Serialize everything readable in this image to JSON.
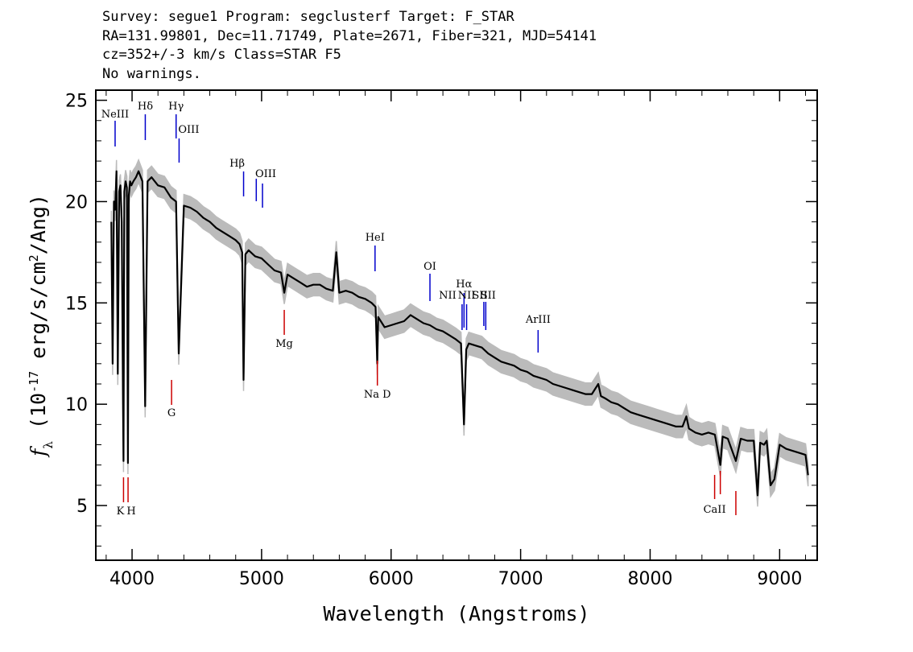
{
  "header": {
    "line1": "Survey: segue1 Program: segclusterf Target: F_STAR",
    "line2": "RA=131.99801, Dec=11.71749, Plate=2671, Fiber=321, MJD=54141",
    "line3": "cz=352+/-3 km/s Class=STAR F5",
    "line4": "No warnings."
  },
  "chart_data": {
    "type": "line",
    "title": "",
    "xlabel": "Wavelength (Angstroms)",
    "ylabel": "f_λ (10^-17 erg/s/cm^2/Ang)",
    "xlim": [
      3720,
      9290
    ],
    "ylim": [
      2.3,
      25.5
    ],
    "xticks": [
      4000,
      5000,
      6000,
      7000,
      8000,
      9000
    ],
    "yticks": [
      5,
      10,
      15,
      20,
      25
    ],
    "grid": false,
    "colors": {
      "spectrum": "#000000",
      "error_band": "#bbbbbb",
      "emission_lines": "#0000cc",
      "absorption_lines": "#cc0000"
    },
    "series": [
      {
        "x": [
          3840,
          3850,
          3860,
          3870,
          3880,
          3890,
          3900,
          3910,
          3920,
          3930,
          3934,
          3940,
          3950,
          3960,
          3968,
          3975,
          3985,
          3995,
          4010,
          4030,
          4050,
          4080,
          4101,
          4120,
          4150,
          4200,
          4250,
          4300,
          4340,
          4360,
          4400,
          4450,
          4500,
          4550,
          4600,
          4650,
          4700,
          4750,
          4800,
          4830,
          4850,
          4861,
          4875,
          4900,
          4950,
          5000,
          5050,
          5100,
          5150,
          5175,
          5200,
          5250,
          5300,
          5350,
          5400,
          5450,
          5500,
          5550,
          5577,
          5600,
          5650,
          5700,
          5750,
          5800,
          5850,
          5880,
          5893,
          5900,
          5950,
          6000,
          6050,
          6100,
          6150,
          6200,
          6250,
          6300,
          6350,
          6400,
          6450,
          6500,
          6540,
          6563,
          6580,
          6600,
          6650,
          6700,
          6750,
          6800,
          6850,
          6900,
          6950,
          7000,
          7050,
          7100,
          7150,
          7200,
          7250,
          7300,
          7350,
          7400,
          7450,
          7500,
          7550,
          7600,
          7620,
          7650,
          7700,
          7750,
          7800,
          7850,
          7900,
          7950,
          8000,
          8050,
          8100,
          8150,
          8200,
          8250,
          8280,
          8300,
          8350,
          8400,
          8450,
          8500,
          8542,
          8560,
          8600,
          8662,
          8700,
          8750,
          8800,
          8830,
          8850,
          8880,
          8900,
          8930,
          8960,
          9000,
          9050,
          9100,
          9150,
          9200,
          9220
        ],
        "values": [
          19.0,
          12.0,
          20.0,
          19.6,
          21.5,
          11.5,
          20.5,
          20.8,
          19.0,
          10.0,
          7.2,
          20.5,
          21.0,
          20.7,
          7.1,
          20.3,
          21.0,
          20.8,
          21.0,
          21.2,
          21.5,
          21.0,
          9.9,
          21.0,
          21.2,
          20.8,
          20.7,
          20.2,
          20.0,
          12.5,
          19.8,
          19.7,
          19.5,
          19.2,
          19.0,
          18.7,
          18.5,
          18.3,
          18.1,
          17.9,
          17.5,
          11.2,
          17.4,
          17.6,
          17.3,
          17.2,
          16.9,
          16.6,
          16.5,
          15.5,
          16.4,
          16.2,
          16.0,
          15.8,
          15.9,
          15.9,
          15.7,
          15.6,
          17.5,
          15.5,
          15.6,
          15.5,
          15.3,
          15.2,
          15.0,
          14.8,
          12.0,
          14.3,
          13.8,
          13.9,
          14.0,
          14.1,
          14.4,
          14.2,
          14.0,
          13.9,
          13.7,
          13.6,
          13.4,
          13.2,
          13.0,
          9.0,
          12.7,
          13.0,
          12.9,
          12.8,
          12.5,
          12.3,
          12.1,
          12.0,
          11.9,
          11.7,
          11.6,
          11.4,
          11.3,
          11.2,
          11.0,
          10.9,
          10.8,
          10.7,
          10.6,
          10.5,
          10.5,
          11.0,
          10.4,
          10.3,
          10.1,
          10.0,
          9.8,
          9.6,
          9.5,
          9.4,
          9.3,
          9.2,
          9.1,
          9.0,
          8.9,
          8.9,
          9.4,
          8.8,
          8.6,
          8.5,
          8.6,
          8.5,
          7.0,
          8.4,
          8.3,
          7.2,
          8.3,
          8.2,
          8.2,
          5.5,
          8.1,
          8.0,
          8.2,
          6.0,
          6.3,
          8.0,
          7.8,
          7.7,
          7.6,
          7.5,
          6.5
        ]
      }
    ],
    "emission_lines": [
      {
        "label": "NeIII",
        "x": 3869
      },
      {
        "label": "Hδ",
        "x": 4102
      },
      {
        "label": "Hγ",
        "x": 4340
      },
      {
        "label": "OIII",
        "x": 4363
      },
      {
        "label": "Hβ",
        "x": 4861
      },
      {
        "label": "OIII",
        "x": 4959
      },
      {
        "label": "OIII",
        "x": 5007
      },
      {
        "label": "HeI",
        "x": 5876
      },
      {
        "label": "OI",
        "x": 6300
      },
      {
        "label": "NII",
        "x": 6548
      },
      {
        "label": "Hα",
        "x": 6563
      },
      {
        "label": "NII",
        "x": 6583
      },
      {
        "label": "SII",
        "x": 6716
      },
      {
        "label": "SII",
        "x": 6731
      },
      {
        "label": "ArIII",
        "x": 7135
      }
    ],
    "absorption_lines": [
      {
        "label": "K",
        "x": 3934
      },
      {
        "label": "H",
        "x": 3969
      },
      {
        "label": "G",
        "x": 4305
      },
      {
        "label": "Mg",
        "x": 5175
      },
      {
        "label": "Na D",
        "x": 5894
      },
      {
        "label": "CaII",
        "x": 8498
      },
      {
        "label": "CaII",
        "x": 8542
      },
      {
        "label": "CaII",
        "x": 8662
      }
    ]
  }
}
